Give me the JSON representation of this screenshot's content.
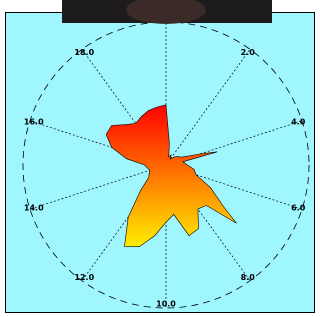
{
  "chart_data": {
    "type": "polar",
    "x": [
      0,
      0.5,
      1,
      1.5,
      2,
      2.5,
      3,
      3.5,
      4,
      4.2,
      4.4,
      5,
      5.5,
      6,
      6.5,
      7,
      7.2,
      7.5,
      8,
      8.5,
      9,
      9.5,
      10,
      10.5,
      11,
      11.5,
      12,
      12.5,
      13,
      14,
      15,
      15.5,
      16,
      16.5,
      17,
      17.5,
      18,
      18.5,
      19,
      19.5
    ],
    "values": [
      0.42,
      0.15,
      0.06,
      0.08,
      0.05,
      0.08,
      0.1,
      0.12,
      0.25,
      0.37,
      0.12,
      0.15,
      0.2,
      0.22,
      0.35,
      0.5,
      0.64,
      0.4,
      0.38,
      0.5,
      0.52,
      0.35,
      0.4,
      0.5,
      0.6,
      0.64,
      0.45,
      0.25,
      0.15,
      0.12,
      0.15,
      0.28,
      0.4,
      0.47,
      0.47,
      0.4,
      0.36,
      0.38,
      0.4,
      0.41
    ],
    "color": [
      "#ff0000",
      "#ffee00"
    ],
    "xlim": [
      0,
      20
    ],
    "ylim": [
      0,
      1
    ],
    "xticks": [
      {
        "value": 2,
        "label": "2.0"
      },
      {
        "value": 4,
        "label": "4.0"
      },
      {
        "value": 6,
        "label": "6.0"
      },
      {
        "value": 8,
        "label": "8.0"
      },
      {
        "value": 10,
        "label": "10.0"
      },
      {
        "value": 12,
        "label": "12.0"
      },
      {
        "value": 14,
        "label": "14.0"
      },
      {
        "value": 16,
        "label": "16.0"
      },
      {
        "value": 18,
        "label": "18.0"
      }
    ],
    "grid": true
  }
}
